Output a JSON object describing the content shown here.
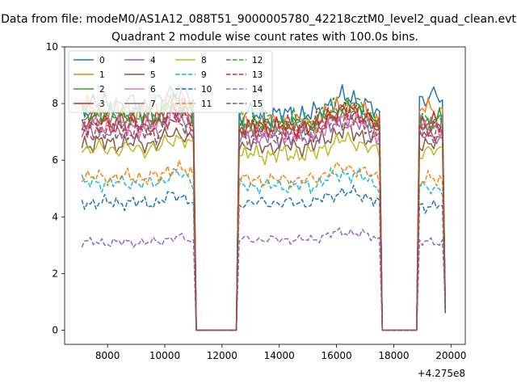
{
  "figure": {
    "suptitle": "Data from file: modeM0/AS1A12_088T51_9000005780_42218cztM0_level2_quad_clean.evt"
  },
  "chart_data": {
    "type": "line",
    "title": "Quadrant 2 module wise count rates with 100.0s bins.",
    "xlabel": "",
    "ylabel": "",
    "x_offset_label": "+4.275e8",
    "xlim": [
      6500,
      20500
    ],
    "ylim": [
      -0.5,
      10
    ],
    "xticks": [
      8000,
      10000,
      12000,
      14000,
      16000,
      18000,
      20000
    ],
    "yticks": [
      0,
      2,
      4,
      6,
      8,
      10
    ],
    "xtick_labels": [
      "8000",
      "10000",
      "12000",
      "14000",
      "16000",
      "18000",
      "20000"
    ],
    "ytick_labels": [
      "0",
      "2",
      "4",
      "6",
      "8",
      "10"
    ],
    "grid": false,
    "legend_position": "upper-left",
    "x_start": 7100,
    "x_end": 19800,
    "bin_width": 100,
    "segments": [
      {
        "start": 7100,
        "end": 11000
      },
      {
        "start": 12600,
        "end": 17500
      },
      {
        "start": 18900,
        "end": 19800
      }
    ],
    "series": [
      {
        "name": "0",
        "color": "#1f77b4",
        "dashed": false,
        "levels": [
          8.0,
          7.6,
          8.2
        ]
      },
      {
        "name": "1",
        "color": "#ff7f0e",
        "dashed": false,
        "levels": [
          7.8,
          7.3,
          7.8
        ]
      },
      {
        "name": "2",
        "color": "#2ca02c",
        "dashed": false,
        "levels": [
          7.6,
          7.2,
          7.4
        ]
      },
      {
        "name": "3",
        "color": "#d62728",
        "dashed": false,
        "levels": [
          7.4,
          7.1,
          7.3
        ]
      },
      {
        "name": "4",
        "color": "#9467bd",
        "dashed": false,
        "levels": [
          7.0,
          6.8,
          6.9
        ]
      },
      {
        "name": "5",
        "color": "#8c564b",
        "dashed": false,
        "levels": [
          6.6,
          6.5,
          6.6
        ]
      },
      {
        "name": "6",
        "color": "#e377c2",
        "dashed": false,
        "levels": [
          7.2,
          6.9,
          7.1
        ]
      },
      {
        "name": "7",
        "color": "#7f7f7f",
        "dashed": false,
        "levels": [
          7.5,
          7.2,
          7.3
        ]
      },
      {
        "name": "8",
        "color": "#bcbd22",
        "dashed": false,
        "levels": [
          6.4,
          6.2,
          6.3
        ]
      },
      {
        "name": "9",
        "color": "#17becf",
        "dashed": true,
        "levels": [
          5.2,
          5.1,
          5.0
        ]
      },
      {
        "name": "10",
        "color": "#1f77b4",
        "dashed": true,
        "levels": [
          4.5,
          4.5,
          4.4
        ]
      },
      {
        "name": "11",
        "color": "#ff7f0e",
        "dashed": true,
        "levels": [
          5.4,
          5.3,
          5.3
        ]
      },
      {
        "name": "12",
        "color": "#2ca02c",
        "dashed": true,
        "levels": [
          7.6,
          7.4,
          7.4
        ]
      },
      {
        "name": "13",
        "color": "#d62728",
        "dashed": true,
        "levels": [
          7.2,
          7.2,
          7.1
        ]
      },
      {
        "name": "14",
        "color": "#9467bd",
        "dashed": true,
        "levels": [
          3.1,
          3.2,
          3.1
        ]
      },
      {
        "name": "15",
        "color": "#8c564b",
        "dashed": true,
        "levels": [
          7.0,
          6.9,
          7.0
        ]
      }
    ]
  }
}
